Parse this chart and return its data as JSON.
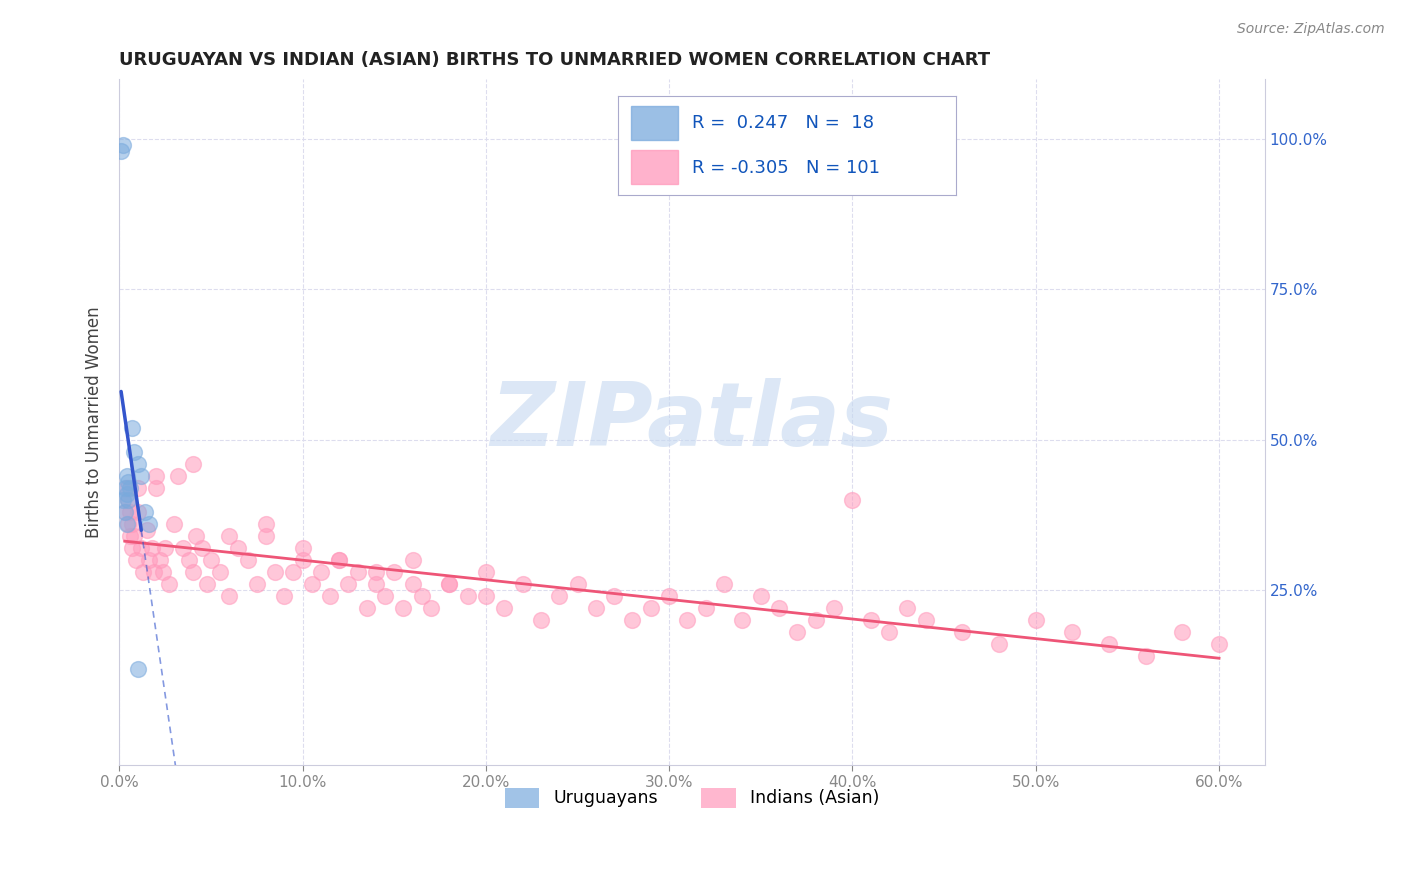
{
  "title": "URUGUAYAN VS INDIAN (ASIAN) BIRTHS TO UNMARRIED WOMEN CORRELATION CHART",
  "source": "Source: ZipAtlas.com",
  "ylabel": "Births to Unmarried Women",
  "legend_labels": [
    "Uruguayans",
    "Indians (Asian)"
  ],
  "r_uruguayan": 0.247,
  "n_uruguayan": 18,
  "r_indian": -0.305,
  "n_indian": 101,
  "xlim": [
    0.0,
    0.625
  ],
  "ylim": [
    -0.04,
    1.1
  ],
  "xtick_vals": [
    0.0,
    0.1,
    0.2,
    0.3,
    0.4,
    0.5,
    0.6
  ],
  "xtick_labels": [
    "0.0%",
    "10.0%",
    "20.0%",
    "30.0%",
    "40.0%",
    "50.0%",
    "60.0%"
  ],
  "ytick_vals": [
    0.25,
    0.5,
    0.75,
    1.0
  ],
  "ytick_labels": [
    "25.0%",
    "50.0%",
    "75.0%",
    "100.0%"
  ],
  "uruguayan_color": "#7aaadd",
  "indian_color": "#ff99bb",
  "trend_uruguayan_color": "#3355cc",
  "trend_indian_color": "#ee5577",
  "background_color": "#ffffff",
  "grid_color": "#ddddee",
  "watermark_color": "#c5d8f0",
  "uru_x": [
    0.001,
    0.002,
    0.002,
    0.003,
    0.003,
    0.004,
    0.004,
    0.005,
    0.005,
    0.006,
    0.007,
    0.008,
    0.01,
    0.012,
    0.014,
    0.016,
    0.004,
    0.01
  ],
  "uru_y": [
    0.98,
    0.99,
    0.4,
    0.42,
    0.38,
    0.44,
    0.41,
    0.43,
    0.4,
    0.42,
    0.52,
    0.48,
    0.46,
    0.44,
    0.38,
    0.36,
    0.36,
    0.12
  ],
  "ind_x": [
    0.003,
    0.004,
    0.005,
    0.005,
    0.006,
    0.006,
    0.007,
    0.007,
    0.008,
    0.009,
    0.01,
    0.01,
    0.012,
    0.013,
    0.015,
    0.016,
    0.018,
    0.019,
    0.02,
    0.022,
    0.024,
    0.025,
    0.027,
    0.03,
    0.032,
    0.035,
    0.038,
    0.04,
    0.042,
    0.045,
    0.048,
    0.05,
    0.055,
    0.06,
    0.065,
    0.07,
    0.075,
    0.08,
    0.085,
    0.09,
    0.095,
    0.1,
    0.105,
    0.11,
    0.115,
    0.12,
    0.125,
    0.13,
    0.135,
    0.14,
    0.145,
    0.15,
    0.155,
    0.16,
    0.165,
    0.17,
    0.18,
    0.19,
    0.2,
    0.21,
    0.22,
    0.23,
    0.24,
    0.25,
    0.26,
    0.27,
    0.28,
    0.29,
    0.3,
    0.31,
    0.32,
    0.33,
    0.34,
    0.35,
    0.36,
    0.37,
    0.38,
    0.39,
    0.4,
    0.41,
    0.42,
    0.43,
    0.44,
    0.46,
    0.48,
    0.5,
    0.52,
    0.54,
    0.56,
    0.58,
    0.6,
    0.02,
    0.04,
    0.06,
    0.08,
    0.1,
    0.12,
    0.14,
    0.16,
    0.18,
    0.2
  ],
  "ind_y": [
    0.38,
    0.42,
    0.36,
    0.4,
    0.34,
    0.38,
    0.32,
    0.36,
    0.34,
    0.3,
    0.38,
    0.42,
    0.32,
    0.28,
    0.35,
    0.3,
    0.32,
    0.28,
    0.42,
    0.3,
    0.28,
    0.32,
    0.26,
    0.36,
    0.44,
    0.32,
    0.3,
    0.28,
    0.34,
    0.32,
    0.26,
    0.3,
    0.28,
    0.24,
    0.32,
    0.3,
    0.26,
    0.34,
    0.28,
    0.24,
    0.28,
    0.3,
    0.26,
    0.28,
    0.24,
    0.3,
    0.26,
    0.28,
    0.22,
    0.26,
    0.24,
    0.28,
    0.22,
    0.26,
    0.24,
    0.22,
    0.26,
    0.24,
    0.28,
    0.22,
    0.26,
    0.2,
    0.24,
    0.26,
    0.22,
    0.24,
    0.2,
    0.22,
    0.24,
    0.2,
    0.22,
    0.26,
    0.2,
    0.24,
    0.22,
    0.18,
    0.2,
    0.22,
    0.4,
    0.2,
    0.18,
    0.22,
    0.2,
    0.18,
    0.16,
    0.2,
    0.18,
    0.16,
    0.14,
    0.18,
    0.16,
    0.44,
    0.46,
    0.34,
    0.36,
    0.32,
    0.3,
    0.28,
    0.3,
    0.26,
    0.24
  ]
}
